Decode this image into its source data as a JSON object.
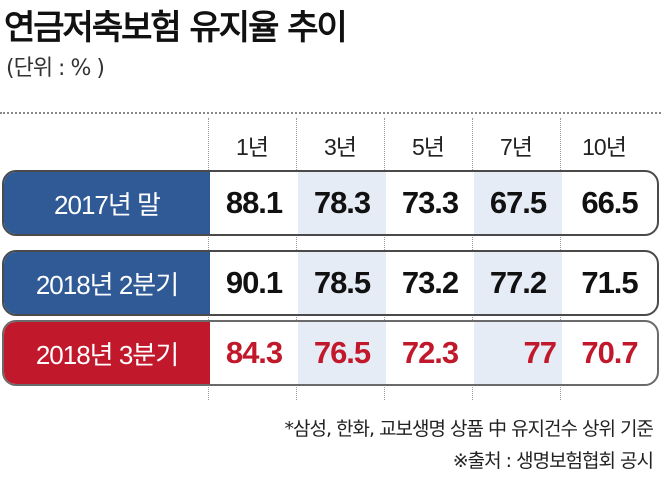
{
  "title": "연금저축보험 유지율 추이",
  "unit": "(단위 : % )",
  "chart_data": {
    "type": "table",
    "columns": [
      "1년",
      "3년",
      "5년",
      "7년",
      "10년"
    ],
    "rows": [
      {
        "label": "2017년 말",
        "values": [
          "88.1",
          "78.3",
          "73.3",
          "67.5",
          "66.5"
        ]
      },
      {
        "label": "2018년 2분기",
        "values": [
          "90.1",
          "78.5",
          "73.2",
          "77.2",
          "71.5"
        ]
      },
      {
        "label": "2018년 3분기",
        "values": [
          "84.3",
          "76.5",
          "72.3",
          "77",
          "70.7"
        ]
      }
    ]
  },
  "colors": {
    "row_blue": "#2f5a96",
    "row_red": "#c2182b",
    "shade": "#e6ecf5"
  },
  "notes": [
    "*삼성, 한화, 교보생명 상품 中 유지건수 상위 기준",
    "※출처 : 생명보험협회 공시"
  ]
}
